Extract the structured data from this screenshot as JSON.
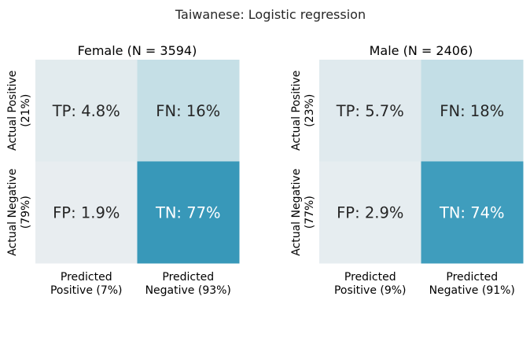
{
  "title": "Taiwanese: Logistic regression",
  "chart_data": [
    {
      "type": "heatmap",
      "title": "Female (N = 3594)",
      "row_labels": [
        [
          "Actual Positive",
          "(21%)"
        ],
        [
          "Actual Negative",
          "(79%)"
        ]
      ],
      "col_labels": [
        [
          "Predicted",
          "Positive (7%)"
        ],
        [
          "Predicted",
          "Negative (93%)"
        ]
      ],
      "cells": [
        [
          {
            "label": "TP: 4.8%",
            "value": 4.8,
            "color": "#e2ebee",
            "text_color": "#262626"
          },
          {
            "label": "FN: 16%",
            "value": 16,
            "color": "#c5dfe6",
            "text_color": "#262626"
          }
        ],
        [
          {
            "label": "FP: 1.9%",
            "value": 1.9,
            "color": "#e8edf0",
            "text_color": "#262626"
          },
          {
            "label": "TN: 77%",
            "value": 77,
            "color": "#3898b9",
            "text_color": "#ffffff"
          }
        ]
      ]
    },
    {
      "type": "heatmap",
      "title": "Male (N = 2406)",
      "row_labels": [
        [
          "Actual Positive",
          "(23%)"
        ],
        [
          "Actual Negative",
          "(77%)"
        ]
      ],
      "col_labels": [
        [
          "Predicted",
          "Positive (9%)"
        ],
        [
          "Predicted",
          "Negative (91%)"
        ]
      ],
      "cells": [
        [
          {
            "label": "TP: 5.7%",
            "value": 5.7,
            "color": "#e0eaee",
            "text_color": "#262626"
          },
          {
            "label": "FN: 18%",
            "value": 18,
            "color": "#c3dee6",
            "text_color": "#262626"
          }
        ],
        [
          {
            "label": "FP: 2.9%",
            "value": 2.9,
            "color": "#e6edf0",
            "text_color": "#262626"
          },
          {
            "label": "TN: 74%",
            "value": 74,
            "color": "#3f9dbd",
            "text_color": "#ffffff"
          }
        ]
      ]
    }
  ]
}
